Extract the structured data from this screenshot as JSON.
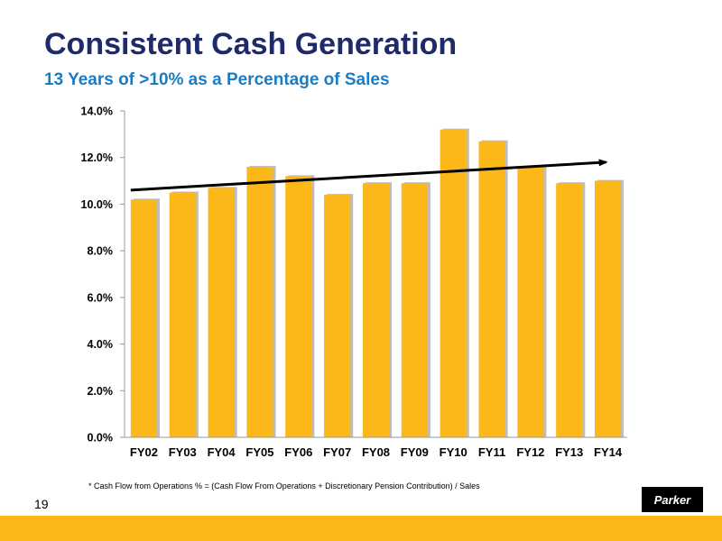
{
  "title": "Consistent Cash Generation",
  "subtitle": "13 Years of >10% as a Percentage of Sales",
  "footnote": "* Cash Flow from Operations % = (Cash Flow From Operations + Discretionary Pension Contribution) / Sales",
  "page_number": "19",
  "logo_text": "Parker",
  "colors": {
    "title": "#1f2a6b",
    "subtitle": "#1a7cc4",
    "bar": "#fbb818",
    "bar_shadow": "#bdbdbd",
    "trend": "#000000",
    "footer_bar": "#fbb818"
  },
  "chart_data": {
    "type": "bar",
    "title": "",
    "xlabel": "",
    "ylabel": "",
    "categories": [
      "FY02",
      "FY03",
      "FY04",
      "FY05",
      "FY06",
      "FY07",
      "FY08",
      "FY09",
      "FY10",
      "FY11",
      "FY12",
      "FY13",
      "FY14"
    ],
    "values": [
      10.2,
      10.5,
      10.7,
      11.6,
      11.2,
      10.4,
      10.9,
      10.9,
      13.2,
      12.7,
      11.6,
      10.9,
      11.0
    ],
    "ylim": [
      0,
      14
    ],
    "y_ticks": [
      0,
      2,
      4,
      6,
      8,
      10,
      12,
      14
    ],
    "y_tick_labels": [
      "0.0%",
      "2.0%",
      "4.0%",
      "6.0%",
      "8.0%",
      "10.0%",
      "12.0%",
      "14.0%"
    ],
    "grid": false,
    "legend": "none",
    "trend_line": {
      "start": {
        "category": "FY02",
        "value": 10.6
      },
      "end": {
        "category": "FY14",
        "value": 11.8
      },
      "arrow": true
    }
  }
}
